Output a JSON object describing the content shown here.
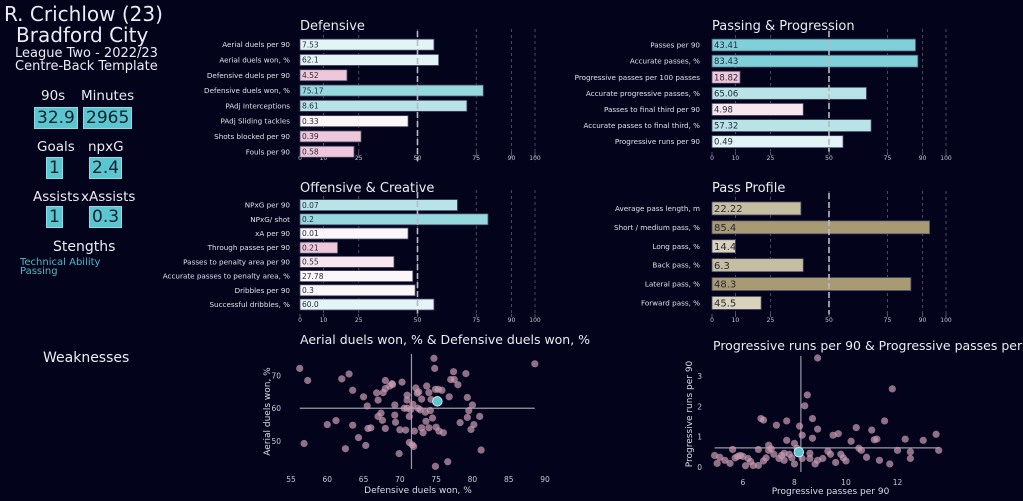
{
  "player": {
    "name": "R. Crichlow (23)",
    "team": "Bradford City",
    "league": "League Two - 2022/23",
    "template": "Centre-Back Template"
  },
  "stats": [
    {
      "label": "90s",
      "value": "32.9"
    },
    {
      "label": "Minutes",
      "value": "2965"
    },
    {
      "label": "Goals",
      "value": "1"
    },
    {
      "label": "npxG",
      "value": "2.4"
    },
    {
      "label": "Assists",
      "value": "1"
    },
    {
      "label": "xAssists",
      "value": "0.3"
    }
  ],
  "strengths": {
    "heading": "Stengths",
    "items": [
      "Technical Ability",
      "Passing"
    ]
  },
  "weaknesses": {
    "heading": "Weaknesses",
    "items": []
  },
  "colors": {
    "background": "#03031c",
    "accent": "#5cc6d0",
    "player_point": "#5cc6d0",
    "other_points": "#c79bb1",
    "guide_line": "#9a9aaa",
    "pass_profile_dark": "#a89a72",
    "pass_profile_light": "#c8c0a0"
  },
  "chart_data": [
    {
      "id": "defensive",
      "type": "bar",
      "orientation": "horizontal",
      "title": "Defensive",
      "xlim": [
        0,
        100
      ],
      "xticks": [
        0,
        10,
        25,
        50,
        75,
        90,
        100
      ],
      "reference_line": 50,
      "categories": [
        "Aerial duels per 90",
        "Aerial duels won, %",
        "Defensive duels per 90",
        "Defensive duels won, %",
        "PAdj Interceptions",
        "PAdj Sliding tackles",
        "Shots blocked per 90",
        "Fouls per 90"
      ],
      "percentiles": [
        57,
        59,
        20,
        78,
        71,
        46,
        26,
        23
      ],
      "labels": [
        "7.53",
        "62.1",
        "4.52",
        "75.17",
        "8.61",
        "0.33",
        "0.39",
        "0.58"
      ]
    },
    {
      "id": "passing",
      "type": "bar",
      "orientation": "horizontal",
      "title": "Passing & Progression",
      "xlim": [
        0,
        100
      ],
      "xticks": [
        0,
        10,
        25,
        50,
        75,
        90,
        100
      ],
      "reference_line": 50,
      "categories": [
        "Passes per 90",
        "Accurate passes, %",
        "Progressive passes per 100 passes",
        "Accurate progressive passes, %",
        "Passes to final third per 90",
        "Accurate passes to final third, %",
        "Progressive runs per 90"
      ],
      "percentiles": [
        87,
        88,
        12,
        66,
        39,
        68,
        56
      ],
      "labels": [
        "43.41",
        "83.43",
        "18.82",
        "65.06",
        "4.98",
        "57.32",
        "0.49"
      ]
    },
    {
      "id": "offensive",
      "type": "bar",
      "orientation": "horizontal",
      "title": "Offensive & Creative",
      "xlim": [
        0,
        100
      ],
      "xticks": [
        0,
        10,
        25,
        50,
        75,
        90,
        100
      ],
      "reference_line": 50,
      "categories": [
        "NPxG per 90",
        "NPxG/ shot",
        "xA per 90",
        "Through passes per 90",
        "Passes to penalty area per 90",
        "Accurate passes to penalty area, %",
        "Dribbles per 90",
        "Successful dribbles, %"
      ],
      "percentiles": [
        67,
        80,
        46,
        16,
        40,
        48,
        49,
        57
      ],
      "labels": [
        "0.07",
        "0.2",
        "0.01",
        "0.21",
        "0.55",
        "27.78",
        "0.3",
        "60.0"
      ]
    },
    {
      "id": "pass_profile",
      "type": "bar",
      "orientation": "horizontal",
      "title": "Pass Profile",
      "xlim": [
        0,
        100
      ],
      "xticks": [
        0,
        10,
        25,
        50,
        75,
        90,
        100
      ],
      "reference_line": 50,
      "categories": [
        "Average pass length, m",
        "Short / medium pass, %",
        "Long pass, %",
        "Back pass, %",
        "Lateral pass, %",
        "Forward pass, %"
      ],
      "percentiles": [
        38,
        93,
        10,
        39,
        85,
        21
      ],
      "labels": [
        "22.22",
        "85.4",
        "14.4",
        "6.3",
        "48.3",
        "45.5"
      ]
    },
    {
      "id": "scatter_duels",
      "type": "scatter",
      "title": "Aerial duels won, % & Defensive duels won, %",
      "xlabel": "Defensive duels won, %",
      "ylabel": "Aerial duels won, %",
      "xlim": [
        55,
        90
      ],
      "ylim": [
        42,
        76
      ],
      "xticks": [
        55,
        60,
        65,
        70,
        75,
        80,
        85,
        90
      ],
      "yticks": [
        50,
        60,
        70
      ],
      "mean_x": 71.6,
      "mean_y": 60,
      "highlight": {
        "x": 75.17,
        "y": 62.1
      },
      "points": [
        [
          56.2,
          72.2
        ],
        [
          57.3,
          68.5
        ],
        [
          56.8,
          49.2
        ],
        [
          60,
          55
        ],
        [
          61.2,
          56.2
        ],
        [
          62,
          69
        ],
        [
          62.5,
          47.6
        ],
        [
          63,
          70.5
        ],
        [
          63.5,
          65.5
        ],
        [
          63.5,
          54.8
        ],
        [
          64.3,
          51
        ],
        [
          65,
          63.5
        ],
        [
          65.3,
          48.6
        ],
        [
          65.5,
          60.7
        ],
        [
          65.6,
          53.8
        ],
        [
          66,
          54
        ],
        [
          66.8,
          64.7
        ],
        [
          67,
          57.5
        ],
        [
          67,
          62.5
        ],
        [
          67.4,
          58.5
        ],
        [
          67.6,
          56.3
        ],
        [
          67.7,
          64.8
        ],
        [
          68,
          66
        ],
        [
          68,
          68.5
        ],
        [
          68,
          53.8
        ],
        [
          68.6,
          66.8
        ],
        [
          68.9,
          67.5
        ],
        [
          69,
          67.3
        ],
        [
          69.3,
          61
        ],
        [
          69.3,
          57.9
        ],
        [
          69.4,
          55.7
        ],
        [
          69.9,
          46.1
        ],
        [
          70,
          53.4
        ],
        [
          70.3,
          68
        ],
        [
          70.6,
          60
        ],
        [
          70.8,
          53.3
        ],
        [
          71,
          62.5
        ],
        [
          71,
          64
        ],
        [
          71,
          60
        ],
        [
          71.3,
          57.5
        ],
        [
          71.3,
          49.5
        ],
        [
          71.5,
          59.6
        ],
        [
          71.7,
          48.8
        ],
        [
          71.8,
          61.2
        ],
        [
          71.9,
          48.3
        ],
        [
          72,
          53
        ],
        [
          72.2,
          66.2
        ],
        [
          72.4,
          64.6
        ],
        [
          72.5,
          60
        ],
        [
          72.6,
          65
        ],
        [
          72.8,
          59.5
        ],
        [
          73,
          54
        ],
        [
          73,
          62.8
        ],
        [
          73.2,
          52.5
        ],
        [
          73.5,
          58.8
        ],
        [
          73.6,
          56
        ],
        [
          73.7,
          66.8
        ],
        [
          74,
          54
        ],
        [
          74,
          64.8
        ],
        [
          74.2,
          59.3
        ],
        [
          74.3,
          62.7
        ],
        [
          74.5,
          57
        ],
        [
          74.7,
          75.3
        ],
        [
          74.8,
          72.2
        ],
        [
          74.9,
          42.2
        ],
        [
          74.9,
          65.8
        ],
        [
          75,
          54.2
        ],
        [
          75.3,
          65.8
        ],
        [
          75.4,
          53
        ],
        [
          75.8,
          65.5
        ],
        [
          76,
          52.5
        ],
        [
          76.6,
          43.6
        ],
        [
          76.8,
          63.5
        ],
        [
          77,
          68.8
        ],
        [
          77.4,
          71.2
        ],
        [
          77.5,
          68.8
        ],
        [
          78,
          67.2
        ],
        [
          78.3,
          55.6
        ],
        [
          79.1,
          70.6
        ],
        [
          79.3,
          57.2
        ],
        [
          79.3,
          63.3
        ],
        [
          79.5,
          59.3
        ],
        [
          79.8,
          53.5
        ],
        [
          80,
          61
        ],
        [
          80.2,
          55
        ],
        [
          81,
          57.5
        ],
        [
          81.2,
          47.2
        ],
        [
          88.6,
          73.6
        ]
      ]
    },
    {
      "id": "scatter_progression",
      "type": "scatter",
      "title": "Progressive runs per 90 & Progressive passes per 90",
      "xlabel": "Progressive passes per 90",
      "ylabel": "Progressive runs per 90",
      "xlim": [
        4.8,
        14
      ],
      "ylim": [
        -0.1,
        3.6
      ],
      "xticks": [
        6,
        8,
        10,
        12
      ],
      "yticks": [
        0,
        1,
        2,
        3
      ],
      "mean_x": 8.25,
      "mean_y": 0.63,
      "highlight": {
        "x": 8.17,
        "y": 0.49
      },
      "points": [
        [
          4.9,
          0.38
        ],
        [
          5,
          0.12
        ],
        [
          5.1,
          0.32
        ],
        [
          5.3,
          0.22
        ],
        [
          5.5,
          0.12
        ],
        [
          5.6,
          0.58
        ],
        [
          5.7,
          0.3
        ],
        [
          5.8,
          0.35
        ],
        [
          5.9,
          0.38
        ],
        [
          6,
          0.35
        ],
        [
          6.1,
          0.04
        ],
        [
          6.2,
          0.28
        ],
        [
          6.3,
          0.18
        ],
        [
          6.4,
          0.05
        ],
        [
          6.6,
          0.58
        ],
        [
          6.6,
          0.05
        ],
        [
          6.7,
          1.6
        ],
        [
          6.8,
          1.55
        ],
        [
          6.8,
          0.2
        ],
        [
          6.9,
          0.3
        ],
        [
          7,
          0.72
        ],
        [
          7,
          0.55
        ],
        [
          7.1,
          0.6
        ],
        [
          7.2,
          0.42
        ],
        [
          7.3,
          1.38
        ],
        [
          7.4,
          0.28
        ],
        [
          7.5,
          0.38
        ],
        [
          7.6,
          0.22
        ],
        [
          7.6,
          0.45
        ],
        [
          7.7,
          1.52
        ],
        [
          7.7,
          0.88
        ],
        [
          7.8,
          0.42
        ],
        [
          7.9,
          0.3
        ],
        [
          8,
          0.78
        ],
        [
          8,
          0.1
        ],
        [
          8.1,
          0.62
        ],
        [
          8.2,
          1.35
        ],
        [
          8.3,
          0.28
        ],
        [
          8.3,
          1.05
        ],
        [
          8.4,
          2.02
        ],
        [
          8.5,
          2.38
        ],
        [
          8.6,
          0.45
        ],
        [
          8.6,
          0.28
        ],
        [
          8.7,
          0.95
        ],
        [
          8.7,
          1.6
        ],
        [
          8.8,
          0.1
        ],
        [
          8.9,
          1.25
        ],
        [
          8.9,
          0.22
        ],
        [
          8.9,
          3.6
        ],
        [
          9.1,
          0.28
        ],
        [
          9.3,
          0.52
        ],
        [
          9.4,
          0.42
        ],
        [
          9.5,
          1.05
        ],
        [
          9.6,
          0.15
        ],
        [
          9.7,
          1.1
        ],
        [
          9.8,
          0.42
        ],
        [
          9.9,
          0.3
        ],
        [
          10,
          0.2
        ],
        [
          10.2,
          0.85
        ],
        [
          10.4,
          1.3
        ],
        [
          10.5,
          0.62
        ],
        [
          10.6,
          0.55
        ],
        [
          10.8,
          0.32
        ],
        [
          11,
          1.22
        ],
        [
          11.1,
          0.9
        ],
        [
          11.2,
          0.92
        ],
        [
          11.3,
          0.22
        ],
        [
          11.5,
          1.52
        ],
        [
          11.7,
          0.1
        ],
        [
          11.8,
          2.58
        ],
        [
          12,
          0.55
        ],
        [
          12.3,
          0.92
        ],
        [
          12.5,
          0.28
        ],
        [
          12.5,
          0.5
        ],
        [
          13,
          0.88
        ],
        [
          13.5,
          1.08
        ],
        [
          13.6,
          0.55
        ]
      ]
    }
  ]
}
